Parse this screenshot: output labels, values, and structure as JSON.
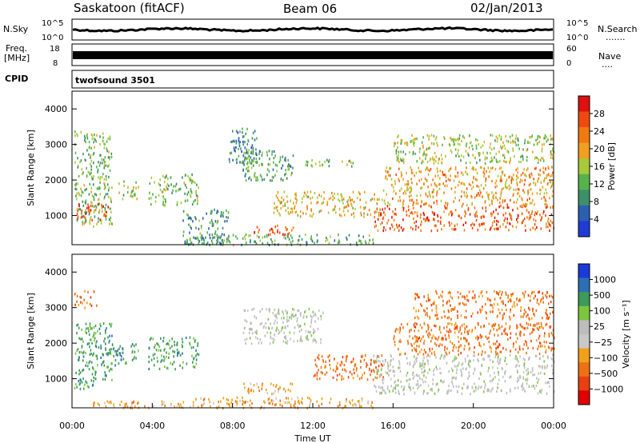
{
  "header": {
    "station": "Saskatoon (fitACF)",
    "beam": "Beam 06",
    "date": "02/Jan/2013"
  },
  "noise_panel": {
    "left_label": "N.Sky",
    "right_label": "N.Search",
    "right_label_dots": ".......",
    "left_ticks": [
      "10^5",
      "10^0"
    ],
    "right_ticks": [
      "10^5",
      "10^0"
    ]
  },
  "freq_panel": {
    "left_label_line1": "Freq.",
    "left_label_line2": "[MHz]",
    "right_label": "Nave",
    "right_label_dots": "....",
    "left_ticks": [
      "18",
      "8"
    ],
    "right_ticks": [
      "60",
      "0"
    ]
  },
  "cpid": {
    "label": "CPID",
    "value": "twofsound 3501"
  },
  "colors": {
    "power_scale": [
      "#1f3bd6",
      "#2c5fb0",
      "#3f8f6a",
      "#55b34a",
      "#a7c93a",
      "#f0a020",
      "#f07a10",
      "#ee4a10",
      "#e01010"
    ],
    "velocity_scale": [
      "#1a3ad8",
      "#2d6fb5",
      "#3c9a5a",
      "#7cc63e",
      "#bdbdbd",
      "#c8c8c8",
      "#f2a018",
      "#ee7015",
      "#e84010",
      "#e00000"
    ]
  },
  "chart_data": [
    {
      "type": "heatmap",
      "name": "power",
      "xlabel": "",
      "ylabel": "Slant Range [km]",
      "xlim": [
        0,
        24
      ],
      "ylim": [
        180,
        4500
      ],
      "yticks": [
        1000,
        2000,
        3000,
        4000
      ],
      "colorbar": {
        "label": "Power [dB]",
        "ticks": [
          "4",
          "8",
          "12",
          "16",
          "20",
          "24",
          "28"
        ],
        "range": [
          0,
          30
        ]
      },
      "regions": [
        {
          "t0": 0.1,
          "t1": 2.0,
          "r0": 700,
          "r1": 3400,
          "v": 12
        },
        {
          "t0": 0.2,
          "t1": 1.8,
          "r0": 900,
          "r1": 1400,
          "v": 28
        },
        {
          "t0": 2.3,
          "t1": 3.3,
          "r0": 1500,
          "r1": 2000,
          "v": 14
        },
        {
          "t0": 3.8,
          "t1": 6.3,
          "r0": 1300,
          "r1": 2200,
          "v": 12
        },
        {
          "t0": 5.5,
          "t1": 7.8,
          "r0": 200,
          "r1": 1200,
          "v": 8
        },
        {
          "t0": 7.8,
          "t1": 9.2,
          "r0": 2500,
          "r1": 3500,
          "v": 6
        },
        {
          "t0": 8.5,
          "t1": 11.0,
          "r0": 2000,
          "r1": 2900,
          "v": 10
        },
        {
          "t0": 9.0,
          "t1": 11.0,
          "r0": 450,
          "r1": 750,
          "v": 27
        },
        {
          "t0": 6.0,
          "t1": 15.0,
          "r0": 200,
          "r1": 500,
          "v": 10
        },
        {
          "t0": 10.0,
          "t1": 15.5,
          "r0": 1000,
          "r1": 1700,
          "v": 18
        },
        {
          "t0": 11.5,
          "t1": 14.0,
          "r0": 2400,
          "r1": 2600,
          "v": 12
        },
        {
          "t0": 15.0,
          "t1": 24.0,
          "r0": 600,
          "r1": 1300,
          "v": 25
        },
        {
          "t0": 15.5,
          "t1": 24.0,
          "r0": 1300,
          "r1": 2400,
          "v": 20
        },
        {
          "t0": 16.0,
          "t1": 24.0,
          "r0": 2500,
          "r1": 3300,
          "v": 14
        }
      ]
    },
    {
      "type": "heatmap",
      "name": "velocity",
      "xlabel": "Time UT",
      "ylabel": "Slant Range [km]",
      "xlim": [
        0,
        24
      ],
      "ylim": [
        180,
        4500
      ],
      "yticks": [
        1000,
        2000,
        3000,
        4000
      ],
      "xticks": [
        "00:00",
        "04:00",
        "08:00",
        "12:00",
        "16:00",
        "20:00",
        "00:00"
      ],
      "colorbar": {
        "label": "Velocity [m s⁻¹]",
        "ticks": [
          "1000",
          "500",
          "100",
          "25",
          "−25",
          "−100",
          "−500",
          "−1000"
        ]
      },
      "regions": [
        {
          "t0": 0.1,
          "t1": 1.2,
          "r0": 3000,
          "r1": 3500,
          "v": -500
        },
        {
          "t0": 0.1,
          "t1": 2.0,
          "r0": 700,
          "r1": 2600,
          "v": 100
        },
        {
          "t0": 2.0,
          "t1": 3.3,
          "r0": 1400,
          "r1": 2000,
          "v": 100
        },
        {
          "t0": 3.8,
          "t1": 6.3,
          "r0": 1300,
          "r1": 2200,
          "v": 100
        },
        {
          "t0": 1.0,
          "t1": 7.5,
          "r0": 200,
          "r1": 400,
          "v": -100
        },
        {
          "t0": 8.5,
          "t1": 12.5,
          "r0": 2000,
          "r1": 3000,
          "v": 0
        },
        {
          "t0": 8.5,
          "t1": 11.0,
          "r0": 600,
          "r1": 900,
          "v": -100
        },
        {
          "t0": 6.0,
          "t1": 15.0,
          "r0": 200,
          "r1": 500,
          "v": -100
        },
        {
          "t0": 12.0,
          "t1": 15.5,
          "r0": 1000,
          "r1": 1700,
          "v": -500
        },
        {
          "t0": 15.0,
          "t1": 24.0,
          "r0": 600,
          "r1": 1700,
          "v": 0
        },
        {
          "t0": 16.0,
          "t1": 24.0,
          "r0": 1700,
          "r1": 2600,
          "v": -500
        },
        {
          "t0": 17.0,
          "t1": 24.0,
          "r0": 2700,
          "r1": 3500,
          "v": -500
        }
      ]
    }
  ]
}
